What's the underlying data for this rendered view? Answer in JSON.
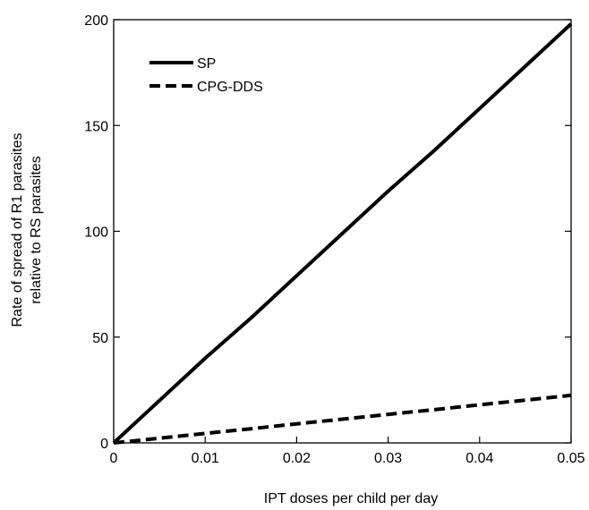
{
  "chart_data": {
    "type": "line",
    "title": "",
    "xlabel": "IPT doses per child per day",
    "ylabel_lines": [
      "Rate of spread of R1 parasites",
      "relative to RS parasites"
    ],
    "xlim": [
      0,
      0.05
    ],
    "ylim": [
      0,
      200
    ],
    "x_ticks": [
      0,
      0.01,
      0.02,
      0.03,
      0.04,
      0.05
    ],
    "x_tick_labels": [
      "0",
      "0.01",
      "0.02",
      "0.03",
      "0.04",
      "0.05"
    ],
    "y_ticks": [
      0,
      50,
      100,
      150,
      200
    ],
    "y_tick_labels": [
      "0",
      "50",
      "100",
      "150",
      "200"
    ],
    "grid": false,
    "legend_position": "top-left",
    "series": [
      {
        "name": "SP",
        "style": "solid",
        "color": "#000000",
        "x": [
          0,
          0.005,
          0.01,
          0.015,
          0.02,
          0.025,
          0.03,
          0.035,
          0.04,
          0.045,
          0.05
        ],
        "y": [
          0,
          20,
          40,
          59,
          79,
          99,
          119,
          138,
          158,
          178,
          198
        ]
      },
      {
        "name": "CPG-DDS",
        "style": "dashed",
        "color": "#000000",
        "x": [
          0,
          0.005,
          0.01,
          0.015,
          0.02,
          0.025,
          0.03,
          0.035,
          0.04,
          0.045,
          0.05
        ],
        "y": [
          0,
          2.2,
          4.5,
          6.7,
          9,
          11.2,
          13.5,
          15.7,
          18,
          20.2,
          22.5
        ]
      }
    ]
  }
}
